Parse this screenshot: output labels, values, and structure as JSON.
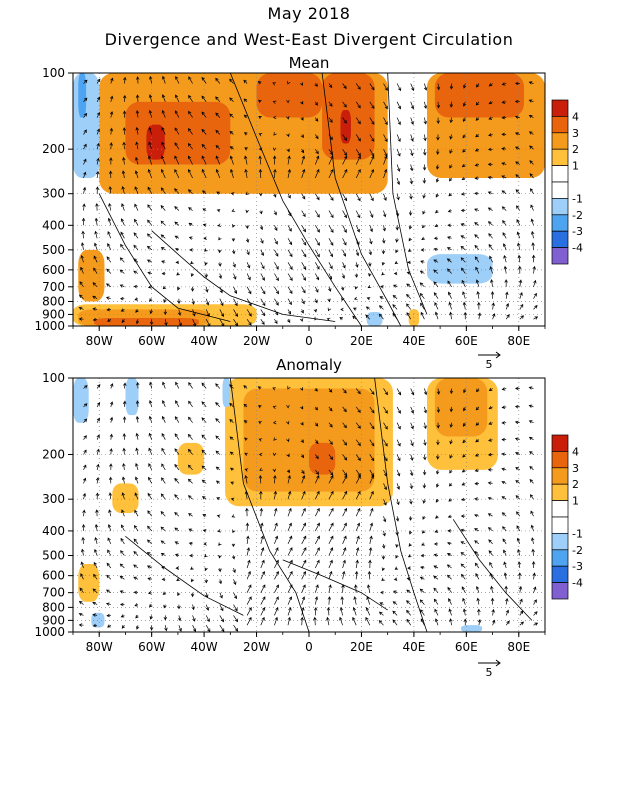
{
  "title": "May 2018",
  "subtitle": "Divergence and West-East Divergent Circulation",
  "colors": {
    "pos": [
      "#ffffff",
      "#ffc03c",
      "#f49b1e",
      "#e8650e",
      "#c81e0a"
    ],
    "neg": [
      "#ffffff",
      "#9ecff8",
      "#4ea4f0",
      "#2a6fe0",
      "#8060d0"
    ]
  },
  "chart_data": [
    {
      "type": "heatmap",
      "title": "Mean",
      "x_ticks": [
        "80W",
        "60W",
        "40W",
        "20W",
        "0",
        "20E",
        "40E",
        "60E",
        "80E"
      ],
      "x_tick_values": [
        -80,
        -60,
        -40,
        -20,
        0,
        20,
        40,
        60,
        80
      ],
      "xlim": [
        -90,
        90
      ],
      "y_ticks": [
        "100",
        "200",
        "300",
        "400",
        "500",
        "600",
        "700",
        "800",
        "900",
        "1000"
      ],
      "y_tick_values": [
        100,
        200,
        300,
        400,
        500,
        600,
        700,
        800,
        900,
        1000
      ],
      "ylim": [
        1000,
        100
      ],
      "y_scale": "log",
      "colorbar_labels": [
        "4",
        "3",
        "2",
        "1",
        "-1",
        "-2",
        "-3",
        "-4"
      ],
      "colorbar_levels": [
        4,
        3,
        2,
        1,
        -1,
        -2,
        -3,
        -4
      ],
      "vector_reference": "5",
      "regions": [
        {
          "level": 2,
          "lon": [
            -80,
            30
          ],
          "p": [
            100,
            300
          ]
        },
        {
          "level": 3,
          "lon": [
            -70,
            -30
          ],
          "p": [
            130,
            230
          ]
        },
        {
          "level": 4,
          "lon": [
            -62,
            -55
          ],
          "p": [
            160,
            220
          ]
        },
        {
          "level": 3,
          "lon": [
            -20,
            5
          ],
          "p": [
            100,
            150
          ]
        },
        {
          "level": 3,
          "lon": [
            5,
            25
          ],
          "p": [
            100,
            220
          ]
        },
        {
          "level": 4,
          "lon": [
            12,
            16
          ],
          "p": [
            140,
            190
          ]
        },
        {
          "level": 2,
          "lon": [
            45,
            90
          ],
          "p": [
            100,
            260
          ]
        },
        {
          "level": 3,
          "lon": [
            48,
            82
          ],
          "p": [
            100,
            150
          ]
        },
        {
          "level": 2,
          "lon": [
            -88,
            -78
          ],
          "p": [
            500,
            800
          ]
        },
        {
          "level": 1,
          "lon": [
            -90,
            -20
          ],
          "p": [
            820,
            1000
          ]
        },
        {
          "level": 2,
          "lon": [
            -88,
            -38
          ],
          "p": [
            860,
            1000
          ]
        },
        {
          "level": 3,
          "lon": [
            -82,
            -42
          ],
          "p": [
            930,
            1000
          ]
        },
        {
          "level": -1,
          "lon": [
            -90,
            -80
          ],
          "p": [
            100,
            260
          ]
        },
        {
          "level": -2,
          "lon": [
            -88,
            -85
          ],
          "p": [
            100,
            150
          ]
        },
        {
          "level": -1,
          "lon": [
            45,
            70
          ],
          "p": [
            520,
            680
          ]
        },
        {
          "level": -1,
          "lon": [
            22,
            28
          ],
          "p": [
            880,
            1000
          ]
        },
        {
          "level": 1,
          "lon": [
            38,
            42
          ],
          "p": [
            860,
            1000
          ]
        }
      ]
    },
    {
      "type": "heatmap",
      "title": "Anomaly",
      "x_ticks": [
        "80W",
        "60W",
        "40W",
        "20W",
        "0",
        "20E",
        "40E",
        "60E",
        "80E"
      ],
      "x_tick_values": [
        -80,
        -60,
        -40,
        -20,
        0,
        20,
        40,
        60,
        80
      ],
      "xlim": [
        -90,
        90
      ],
      "y_ticks": [
        "100",
        "200",
        "300",
        "400",
        "500",
        "600",
        "700",
        "800",
        "900",
        "1000"
      ],
      "y_tick_values": [
        100,
        200,
        300,
        400,
        500,
        600,
        700,
        800,
        900,
        1000
      ],
      "ylim": [
        1000,
        100
      ],
      "y_scale": "log",
      "colorbar_labels": [
        "4",
        "3",
        "2",
        "1",
        "-1",
        "-2",
        "-3",
        "-4"
      ],
      "colorbar_levels": [
        4,
        3,
        2,
        1,
        -1,
        -2,
        -3,
        -4
      ],
      "vector_reference": "5",
      "regions": [
        {
          "level": 1,
          "lon": [
            -32,
            32
          ],
          "p": [
            100,
            320
          ]
        },
        {
          "level": 2,
          "lon": [
            -25,
            25
          ],
          "p": [
            110,
            280
          ]
        },
        {
          "level": 3,
          "lon": [
            0,
            10
          ],
          "p": [
            180,
            240
          ]
        },
        {
          "level": 1,
          "lon": [
            45,
            72
          ],
          "p": [
            100,
            230
          ]
        },
        {
          "level": 2,
          "lon": [
            48,
            68
          ],
          "p": [
            100,
            170
          ]
        },
        {
          "level": 1,
          "lon": [
            -75,
            -65
          ],
          "p": [
            260,
            340
          ]
        },
        {
          "level": 1,
          "lon": [
            -50,
            -40
          ],
          "p": [
            180,
            240
          ]
        },
        {
          "level": 1,
          "lon": [
            -88,
            -80
          ],
          "p": [
            540,
            760
          ]
        },
        {
          "level": -1,
          "lon": [
            -90,
            -84
          ],
          "p": [
            100,
            150
          ]
        },
        {
          "level": -1,
          "lon": [
            -70,
            -65
          ],
          "p": [
            100,
            140
          ]
        },
        {
          "level": -1,
          "lon": [
            -33,
            -30
          ],
          "p": [
            100,
            130
          ]
        },
        {
          "level": -1,
          "lon": [
            -83,
            -78
          ],
          "p": [
            840,
            960
          ]
        },
        {
          "level": -1,
          "lon": [
            58,
            66
          ],
          "p": [
            940,
            1000
          ]
        }
      ]
    }
  ]
}
